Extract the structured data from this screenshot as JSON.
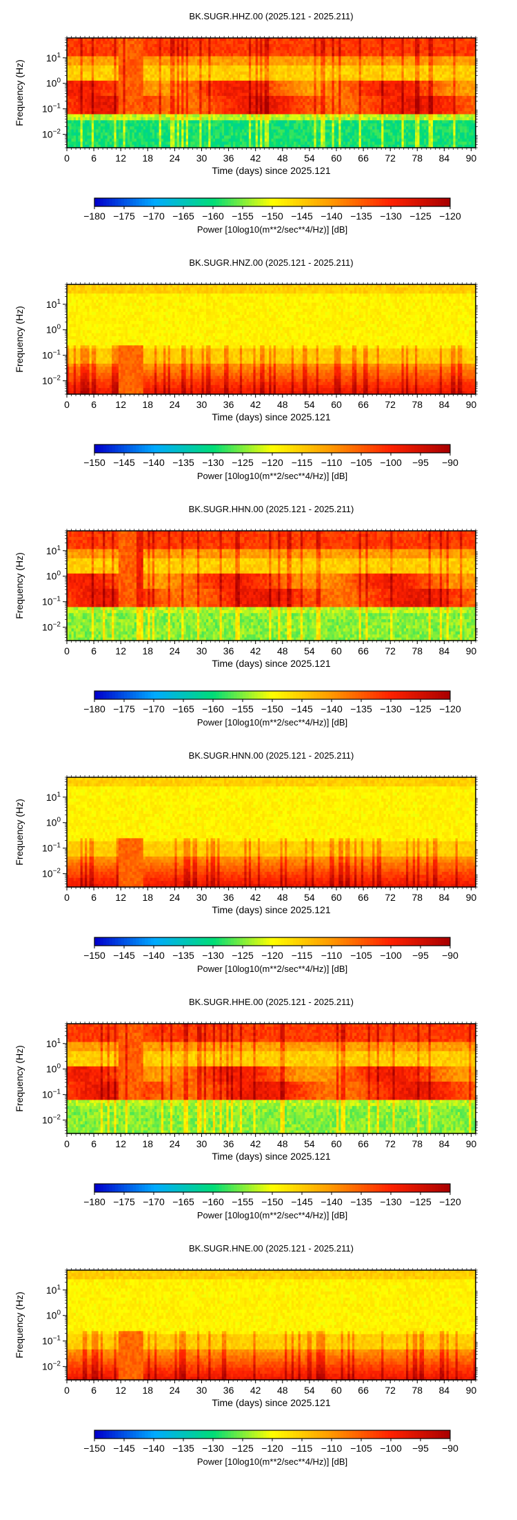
{
  "chart_data": [
    {
      "type": "heatmap",
      "title": "BK.SUGR.HHZ.00 (2025.121 - 2025.211)",
      "xlabel": "Time (days) since 2025.121",
      "ylabel": "Frequency (Hz)",
      "xlim": [
        0,
        91
      ],
      "ylim": [
        0.003,
        60
      ],
      "y_scale": "log",
      "xticks": [
        "0",
        "6",
        "12",
        "18",
        "24",
        "30",
        "36",
        "42",
        "48",
        "54",
        "60",
        "66",
        "72",
        "78",
        "84",
        "90"
      ],
      "yticks": [
        "10^-2",
        "10^-1",
        "10^0",
        "10^1"
      ],
      "colorbar": {
        "min": -180,
        "max": -120,
        "label": "Power [10log10(m**2/sec**4/Hz)] [dB]",
        "ticks": [
          "-180",
          "-175",
          "-170",
          "-165",
          "-160",
          "-155",
          "-150",
          "-145",
          "-140",
          "-135",
          "-130",
          "-125",
          "-120"
        ]
      },
      "palette": [
        "#0000cc",
        "#00aaff",
        "#00dd77",
        "#ffff00",
        "#ff9900",
        "#ff2200",
        "#aa0000"
      ],
      "pattern": "broadband"
    },
    {
      "type": "heatmap",
      "title": "BK.SUGR.HNZ.00 (2025.121 - 2025.211)",
      "xlabel": "Time (days) since 2025.121",
      "ylabel": "Frequency (Hz)",
      "xlim": [
        0,
        91
      ],
      "ylim": [
        0.003,
        60
      ],
      "y_scale": "log",
      "xticks": [
        "0",
        "6",
        "12",
        "18",
        "24",
        "30",
        "36",
        "42",
        "48",
        "54",
        "60",
        "66",
        "72",
        "78",
        "84",
        "90"
      ],
      "yticks": [
        "10^-2",
        "10^-1",
        "10^0",
        "10^1"
      ],
      "colorbar": {
        "min": -150,
        "max": -90,
        "label": "Power [10log10(m**2/sec**4/Hz)] [dB]",
        "ticks": [
          "-150",
          "-145",
          "-140",
          "-135",
          "-130",
          "-125",
          "-120",
          "-115",
          "-110",
          "-105",
          "-100",
          "-95",
          "-90"
        ]
      },
      "palette": [
        "#0000cc",
        "#00aaff",
        "#00dd77",
        "#ffff00",
        "#ff9900",
        "#ff2200",
        "#aa0000"
      ],
      "pattern": "strong"
    },
    {
      "type": "heatmap",
      "title": "BK.SUGR.HHN.00 (2025.121 - 2025.211)",
      "xlabel": "Time (days) since 2025.121",
      "ylabel": "Frequency (Hz)",
      "xlim": [
        0,
        91
      ],
      "ylim": [
        0.003,
        60
      ],
      "y_scale": "log",
      "xticks": [
        "0",
        "6",
        "12",
        "18",
        "24",
        "30",
        "36",
        "42",
        "48",
        "54",
        "60",
        "66",
        "72",
        "78",
        "84",
        "90"
      ],
      "yticks": [
        "10^-2",
        "10^-1",
        "10^0",
        "10^1"
      ],
      "colorbar": {
        "min": -180,
        "max": -120,
        "label": "Power [10log10(m**2/sec**4/Hz)] [dB]",
        "ticks": [
          "-180",
          "-175",
          "-170",
          "-165",
          "-160",
          "-155",
          "-150",
          "-145",
          "-140",
          "-135",
          "-130",
          "-125",
          "-120"
        ]
      },
      "palette": [
        "#0000cc",
        "#00aaff",
        "#00dd77",
        "#ffff00",
        "#ff9900",
        "#ff2200",
        "#aa0000"
      ],
      "pattern": "broadband_h"
    },
    {
      "type": "heatmap",
      "title": "BK.SUGR.HNN.00 (2025.121 - 2025.211)",
      "xlabel": "Time (days) since 2025.121",
      "ylabel": "Frequency (Hz)",
      "xlim": [
        0,
        91
      ],
      "ylim": [
        0.003,
        60
      ],
      "y_scale": "log",
      "xticks": [
        "0",
        "6",
        "12",
        "18",
        "24",
        "30",
        "36",
        "42",
        "48",
        "54",
        "60",
        "66",
        "72",
        "78",
        "84",
        "90"
      ],
      "yticks": [
        "10^-2",
        "10^-1",
        "10^0",
        "10^1"
      ],
      "colorbar": {
        "min": -150,
        "max": -90,
        "label": "Power [10log10(m**2/sec**4/Hz)] [dB]",
        "ticks": [
          "-150",
          "-145",
          "-140",
          "-135",
          "-130",
          "-125",
          "-120",
          "-115",
          "-110",
          "-105",
          "-100",
          "-95",
          "-90"
        ]
      },
      "palette": [
        "#0000cc",
        "#00aaff",
        "#00dd77",
        "#ffff00",
        "#ff9900",
        "#ff2200",
        "#aa0000"
      ],
      "pattern": "strong"
    },
    {
      "type": "heatmap",
      "title": "BK.SUGR.HHE.00 (2025.121 - 2025.211)",
      "xlabel": "Time (days) since 2025.121",
      "ylabel": "Frequency (Hz)",
      "xlim": [
        0,
        91
      ],
      "ylim": [
        0.003,
        60
      ],
      "y_scale": "log",
      "xticks": [
        "0",
        "6",
        "12",
        "18",
        "24",
        "30",
        "36",
        "42",
        "48",
        "54",
        "60",
        "66",
        "72",
        "78",
        "84",
        "90"
      ],
      "yticks": [
        "10^-2",
        "10^-1",
        "10^0",
        "10^1"
      ],
      "colorbar": {
        "min": -180,
        "max": -120,
        "label": "Power [10log10(m**2/sec**4/Hz)] [dB]",
        "ticks": [
          "-180",
          "-175",
          "-170",
          "-165",
          "-160",
          "-155",
          "-150",
          "-145",
          "-140",
          "-135",
          "-130",
          "-125",
          "-120"
        ]
      },
      "palette": [
        "#0000cc",
        "#00aaff",
        "#00dd77",
        "#ffff00",
        "#ff9900",
        "#ff2200",
        "#aa0000"
      ],
      "pattern": "broadband_h"
    },
    {
      "type": "heatmap",
      "title": "BK.SUGR.HNE.00 (2025.121 - 2025.211)",
      "xlabel": "Time (days) since 2025.121",
      "ylabel": "Frequency (Hz)",
      "xlim": [
        0,
        91
      ],
      "ylim": [
        0.003,
        60
      ],
      "y_scale": "log",
      "xticks": [
        "0",
        "6",
        "12",
        "18",
        "24",
        "30",
        "36",
        "42",
        "48",
        "54",
        "60",
        "66",
        "72",
        "78",
        "84",
        "90"
      ],
      "yticks": [
        "10^-2",
        "10^-1",
        "10^0",
        "10^1"
      ],
      "colorbar": {
        "min": -150,
        "max": -90,
        "label": "Power [10log10(m**2/sec**4/Hz)] [dB]",
        "ticks": [
          "-150",
          "-145",
          "-140",
          "-135",
          "-130",
          "-125",
          "-120",
          "-115",
          "-110",
          "-105",
          "-100",
          "-95",
          "-90"
        ]
      },
      "palette": [
        "#0000cc",
        "#00aaff",
        "#00dd77",
        "#ffff00",
        "#ff9900",
        "#ff2200",
        "#aa0000"
      ],
      "pattern": "strong"
    }
  ]
}
